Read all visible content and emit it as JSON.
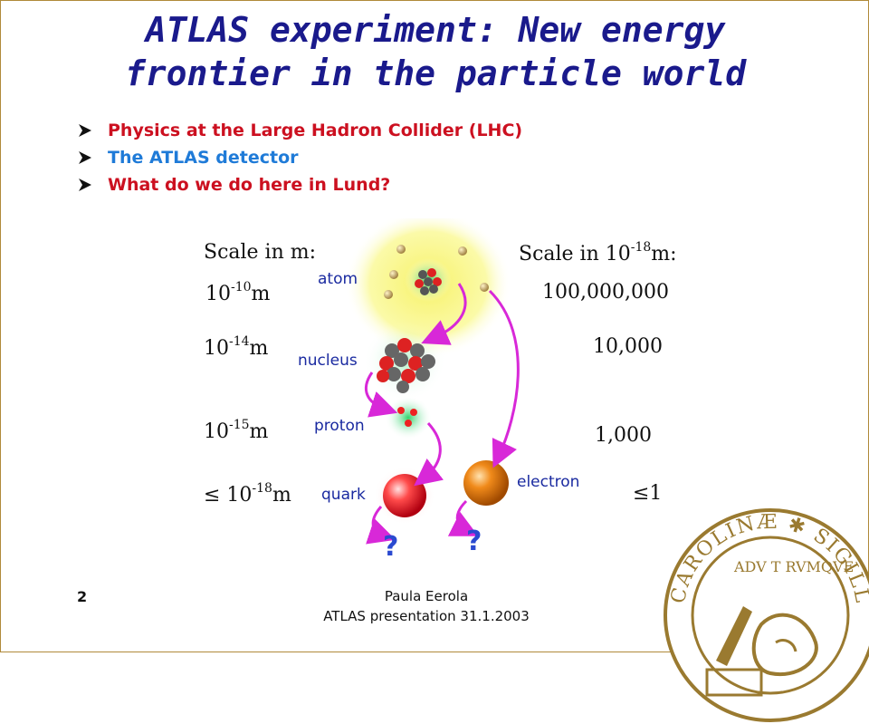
{
  "title": {
    "line1": "ATLAS experiment: New energy",
    "line2": "frontier in the particle world"
  },
  "bullets": [
    {
      "text": "Physics at the Large Hadron Collider (LHC)",
      "color": "#cc1020"
    },
    {
      "text": "The ATLAS detector",
      "color": "#1f7bd8"
    },
    {
      "text": "What do we do here in Lund?",
      "color": "#cc1020"
    }
  ],
  "figure": {
    "left_header": "Scale in  m:",
    "right_header_prefix": "Scale in  10",
    "right_header_exp": "-18",
    "right_header_suffix": "m:",
    "rows": [
      {
        "left_prefix": "10",
        "left_exp": "-10",
        "left_unit": "m",
        "label": "atom",
        "right": "100,000,000"
      },
      {
        "left_prefix": "10",
        "left_exp": "-14",
        "left_unit": "m",
        "label": "nucleus",
        "right": "10,000"
      },
      {
        "left_prefix": "10",
        "left_exp": "-15",
        "left_unit": "m",
        "label": "proton",
        "right": "1,000"
      },
      {
        "left_prefix": "≤ 10",
        "left_exp": "-18",
        "left_unit": "m",
        "label": "quark",
        "right": "≤1"
      }
    ],
    "electron_label": "electron",
    "question_mark": "?"
  },
  "footer": {
    "slide_number": "2",
    "author": "Paula Eerola",
    "event": "ATLAS presentation 31.1.2003"
  },
  "seal": {
    "text": "CAROLINÆ ✱ SIGILL ADV T RVMQVE"
  }
}
